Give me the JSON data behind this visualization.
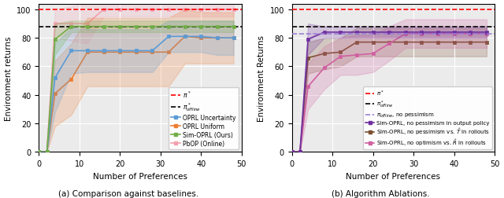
{
  "x_vals": [
    0,
    2,
    4,
    8,
    12,
    16,
    20,
    24,
    28,
    32,
    36,
    40,
    44,
    48
  ],
  "pi_star": 100,
  "pi_offline": 88,
  "pi_offline_no_pessimism": 83,
  "left": {
    "oprl_uncertainty_mean": [
      0,
      0,
      52,
      71,
      71,
      71,
      71,
      71,
      71,
      81,
      81,
      81,
      80,
      80
    ],
    "oprl_uncertainty_lo": [
      0,
      0,
      28,
      55,
      56,
      56,
      56,
      56,
      56,
      70,
      70,
      70,
      68,
      68
    ],
    "oprl_uncertainty_hi": [
      0,
      0,
      76,
      87,
      86,
      86,
      86,
      86,
      86,
      92,
      92,
      92,
      92,
      92
    ],
    "oprl_uniform_mean": [
      0,
      0,
      41,
      51,
      70,
      70,
      70,
      70,
      70,
      70,
      81,
      80,
      80,
      80
    ],
    "oprl_uniform_lo": [
      0,
      0,
      18,
      26,
      46,
      46,
      46,
      46,
      46,
      46,
      62,
      62,
      62,
      62
    ],
    "oprl_uniform_hi": [
      0,
      0,
      64,
      76,
      94,
      94,
      94,
      94,
      94,
      94,
      100,
      98,
      98,
      98
    ],
    "sim_oprl_mean": [
      0,
      0,
      79,
      88,
      88,
      88,
      88,
      88,
      88,
      88,
      88,
      88,
      88,
      88
    ],
    "sim_oprl_lo": [
      0,
      0,
      68,
      84,
      84,
      84,
      84,
      84,
      84,
      84,
      84,
      84,
      84,
      84
    ],
    "sim_oprl_hi": [
      0,
      0,
      90,
      92,
      92,
      92,
      92,
      92,
      92,
      92,
      92,
      92,
      92,
      92
    ],
    "pbop_mean": [
      0,
      0,
      90,
      90,
      90,
      100,
      100,
      100,
      100,
      100,
      100,
      100,
      100,
      100
    ],
    "pbop_lo": [
      0,
      0,
      80,
      78,
      76,
      95,
      95,
      95,
      95,
      95,
      95,
      95,
      95,
      95
    ],
    "pbop_hi": [
      0,
      0,
      100,
      102,
      104,
      105,
      105,
      105,
      105,
      105,
      105,
      105,
      105,
      105
    ],
    "colors": {
      "oprl_uncertainty": "#5b9bd5",
      "oprl_uniform": "#ed7d31",
      "sim_oprl": "#70ad47",
      "pbop": "#f4a0b0"
    }
  },
  "right": {
    "no_pessimism_output_mean": [
      0,
      0,
      79,
      84,
      84,
      84,
      84,
      84,
      84,
      84,
      84,
      84,
      84,
      84
    ],
    "no_pessimism_output_lo": [
      0,
      0,
      68,
      80,
      80,
      80,
      80,
      80,
      80,
      80,
      80,
      80,
      80,
      80
    ],
    "no_pessimism_output_hi": [
      0,
      0,
      90,
      88,
      88,
      88,
      88,
      88,
      88,
      88,
      88,
      88,
      88,
      88
    ],
    "no_pessimism_T_mean": [
      0,
      0,
      66,
      69,
      70,
      77,
      77,
      77,
      77,
      77,
      77,
      77,
      77,
      77
    ],
    "no_pessimism_T_lo": [
      0,
      0,
      55,
      58,
      60,
      67,
      67,
      67,
      67,
      67,
      67,
      67,
      67,
      67
    ],
    "no_pessimism_T_hi": [
      0,
      0,
      77,
      80,
      80,
      87,
      87,
      87,
      87,
      87,
      87,
      87,
      87,
      87
    ],
    "no_optimism_R_mean": [
      0,
      0,
      46,
      59,
      67,
      68,
      69,
      76,
      83,
      83,
      83,
      83,
      83,
      83
    ],
    "no_optimism_R_lo": [
      0,
      0,
      30,
      44,
      54,
      54,
      56,
      64,
      73,
      73,
      73,
      73,
      73,
      73
    ],
    "no_optimism_R_hi": [
      0,
      0,
      62,
      74,
      80,
      82,
      82,
      88,
      93,
      93,
      93,
      93,
      93,
      93
    ],
    "colors": {
      "no_pessimism_output": "#7030a0",
      "no_pessimism_T": "#7b4f2e",
      "no_optimism_R": "#d060a0"
    }
  },
  "xlabel": "Number of Preferences",
  "ylabel_left": "Environment returns",
  "ylabel_right": "Environment Returns",
  "caption_left": "(a) Comparison against baselines.",
  "caption_right": "(b) Algorithm Ablations.",
  "ylim": [
    0,
    104
  ],
  "yticks": [
    0,
    20,
    40,
    60,
    80,
    100
  ],
  "xlim": [
    0,
    50
  ],
  "xticks": [
    0,
    10,
    20,
    30,
    40,
    50
  ],
  "background": "#ebebeb"
}
